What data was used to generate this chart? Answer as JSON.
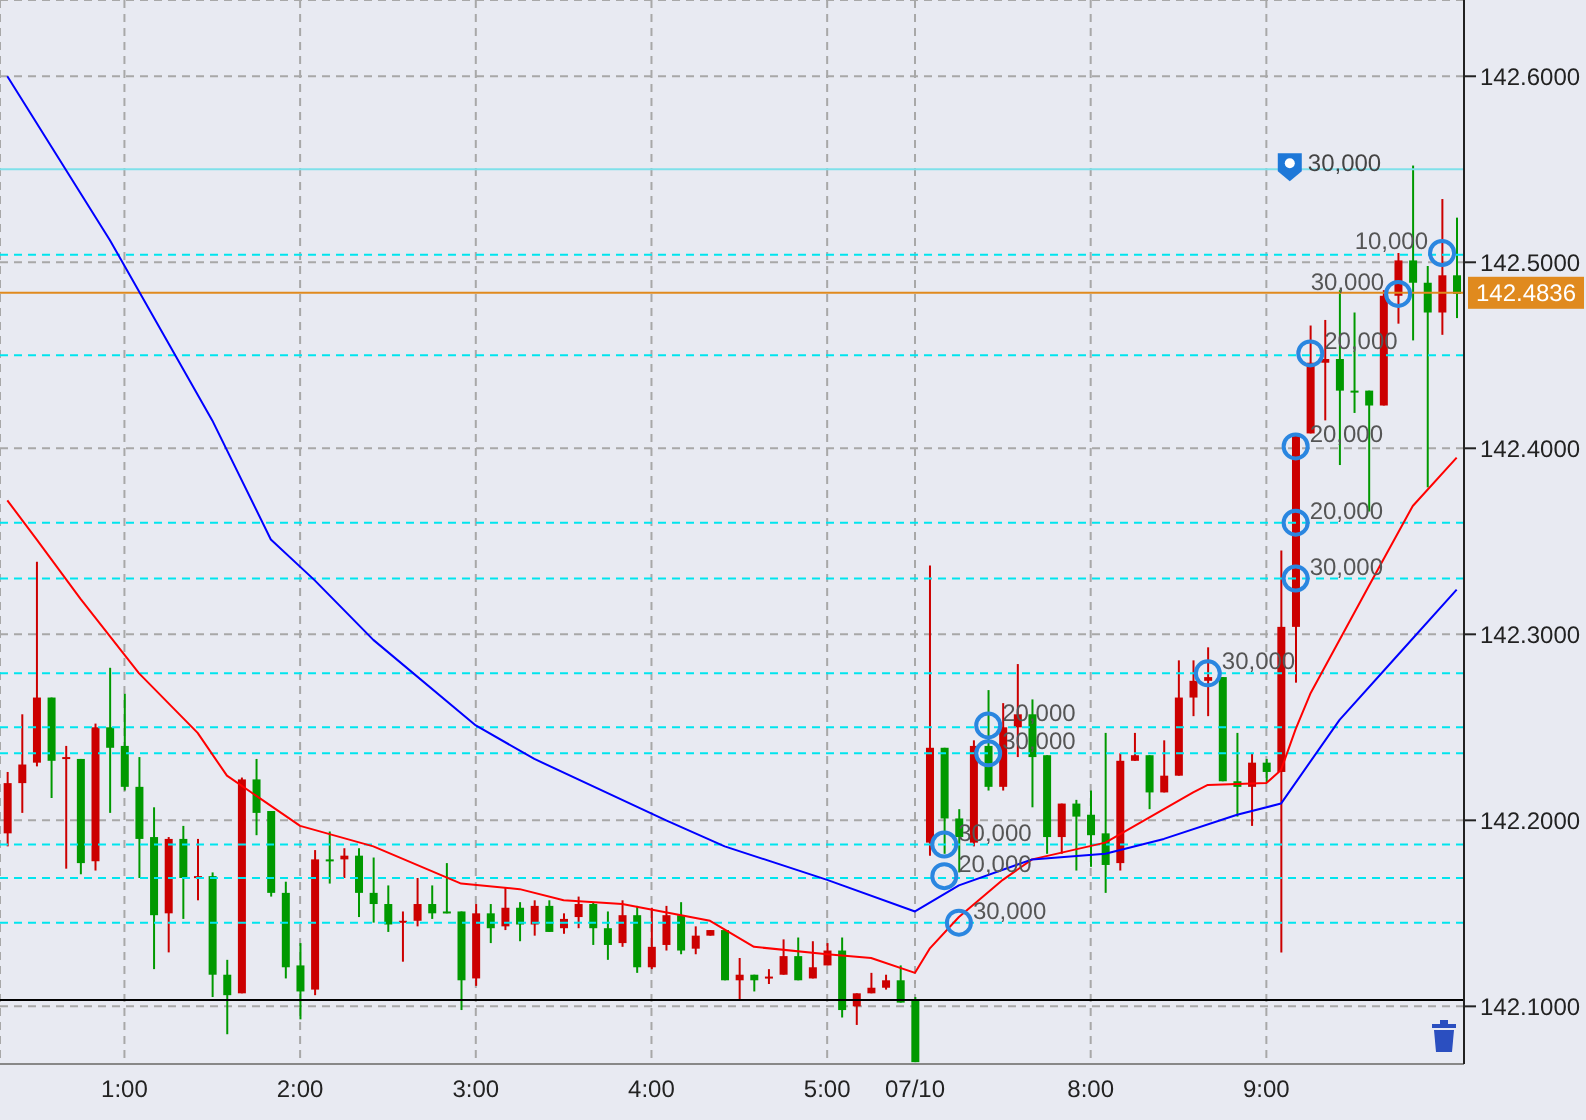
{
  "chart_data": {
    "type": "candlestick",
    "categories": [
      null,
      null,
      null,
      null,
      null,
      null,
      null,
      null,
      "1:00",
      null,
      null,
      null,
      null,
      null,
      null,
      null,
      null,
      null,
      null,
      null,
      "2:00",
      null,
      null,
      null,
      null,
      null,
      null,
      null,
      null,
      null,
      null,
      null,
      "3:00",
      null,
      null,
      null,
      null,
      null,
      null,
      null,
      null,
      null,
      null,
      null,
      "4:00",
      null,
      null,
      null,
      null,
      null,
      null,
      null,
      null,
      null,
      null,
      null,
      "5:00",
      null,
      null,
      null,
      null,
      null,
      "07/10",
      null,
      null,
      null,
      null,
      null,
      null,
      null,
      null,
      null,
      null,
      null,
      "8:00",
      null,
      null,
      null,
      null,
      null,
      null,
      null,
      null,
      null,
      null,
      null,
      "9:00",
      null,
      null,
      null,
      null,
      null,
      null,
      null,
      null,
      null,
      null,
      null,
      null,
      null
    ],
    "ohlc": [
      [
        142.193,
        142.226,
        142.186,
        142.22
      ],
      [
        142.22,
        142.257,
        142.204,
        142.23
      ],
      [
        142.231,
        142.339,
        142.229,
        142.266
      ],
      [
        142.266,
        142.266,
        142.212,
        142.232
      ],
      [
        142.234,
        142.24,
        142.174,
        142.234
      ],
      [
        142.233,
        142.233,
        142.171,
        142.177
      ],
      [
        142.178,
        142.252,
        142.173,
        142.25
      ],
      [
        142.25,
        142.282,
        142.204,
        142.239
      ],
      [
        142.24,
        142.268,
        142.216,
        142.218
      ],
      [
        142.218,
        142.234,
        142.169,
        142.19
      ],
      [
        142.191,
        142.207,
        142.12,
        142.149
      ],
      [
        142.15,
        142.191,
        142.129,
        142.19
      ],
      [
        142.19,
        142.197,
        142.147,
        142.169
      ],
      [
        142.169,
        142.19,
        142.157,
        142.17
      ],
      [
        142.17,
        142.172,
        142.105,
        142.117
      ],
      [
        142.117,
        142.125,
        142.085,
        142.106
      ],
      [
        142.107,
        142.223,
        142.107,
        142.222
      ],
      [
        142.222,
        142.233,
        142.192,
        142.204
      ],
      [
        142.205,
        142.205,
        142.159,
        142.161
      ],
      [
        142.161,
        142.167,
        142.115,
        142.121
      ],
      [
        142.122,
        142.134,
        142.093,
        142.108
      ],
      [
        142.109,
        142.184,
        142.106,
        142.179
      ],
      [
        142.179,
        142.194,
        142.166,
        142.178
      ],
      [
        142.179,
        142.185,
        142.169,
        142.181
      ],
      [
        142.181,
        142.185,
        142.148,
        142.161
      ],
      [
        142.161,
        142.18,
        142.145,
        142.155
      ],
      [
        142.155,
        142.165,
        142.14,
        142.144
      ],
      [
        142.145,
        142.151,
        142.124,
        142.146
      ],
      [
        142.146,
        142.169,
        142.143,
        142.155
      ],
      [
        142.155,
        142.165,
        142.147,
        142.15
      ],
      [
        142.151,
        142.177,
        142.15,
        142.15
      ],
      [
        142.151,
        142.151,
        142.098,
        142.114
      ],
      [
        142.115,
        142.155,
        142.111,
        142.15
      ],
      [
        142.15,
        142.155,
        142.134,
        142.142
      ],
      [
        142.143,
        142.164,
        142.141,
        142.153
      ],
      [
        142.153,
        142.156,
        142.135,
        142.144
      ],
      [
        142.144,
        142.157,
        142.138,
        142.154
      ],
      [
        142.154,
        142.157,
        142.14,
        142.14
      ],
      [
        142.142,
        142.15,
        142.139,
        142.147
      ],
      [
        142.148,
        142.159,
        142.142,
        142.155
      ],
      [
        142.155,
        142.156,
        142.133,
        142.142
      ],
      [
        142.142,
        142.151,
        142.125,
        142.133
      ],
      [
        142.134,
        142.157,
        142.132,
        142.149
      ],
      [
        142.149,
        142.154,
        142.118,
        142.121
      ],
      [
        142.121,
        142.153,
        142.12,
        142.132
      ],
      [
        142.133,
        142.154,
        142.13,
        142.149
      ],
      [
        142.149,
        142.156,
        142.128,
        142.13
      ],
      [
        142.131,
        142.143,
        142.128,
        142.138
      ],
      [
        142.138,
        142.141,
        142.138,
        142.141
      ],
      [
        142.141,
        142.141,
        142.114,
        142.114
      ],
      [
        142.114,
        142.126,
        142.103,
        142.117
      ],
      [
        142.117,
        142.117,
        142.108,
        142.114
      ],
      [
        142.115,
        142.12,
        142.112,
        142.116
      ],
      [
        142.117,
        142.136,
        142.117,
        142.127
      ],
      [
        142.127,
        142.137,
        142.114,
        142.114
      ],
      [
        142.115,
        142.135,
        142.115,
        142.121
      ],
      [
        142.122,
        142.134,
        142.122,
        142.13
      ],
      [
        142.13,
        142.137,
        142.094,
        142.098
      ],
      [
        142.1,
        142.107,
        142.09,
        142.107
      ],
      [
        142.107,
        142.118,
        142.107,
        142.11
      ],
      [
        142.11,
        142.117,
        142.109,
        142.114
      ],
      [
        142.114,
        142.122,
        142.102,
        142.102
      ],
      [
        142.103,
        142.105,
        142.07,
        142.07
      ],
      [
        142.188,
        142.337,
        142.181,
        142.239
      ],
      [
        142.239,
        142.239,
        142.182,
        142.201
      ],
      [
        142.201,
        142.206,
        142.172,
        142.191
      ],
      [
        142.188,
        142.243,
        142.186,
        142.24
      ],
      [
        142.24,
        142.27,
        142.216,
        142.218
      ],
      [
        142.218,
        142.263,
        142.216,
        142.25
      ],
      [
        142.25,
        142.284,
        142.234,
        142.257
      ],
      [
        142.257,
        142.265,
        142.207,
        142.234
      ],
      [
        142.235,
        142.235,
        142.182,
        142.191
      ],
      [
        142.191,
        142.209,
        142.182,
        142.209
      ],
      [
        142.209,
        142.211,
        142.173,
        142.202
      ],
      [
        142.203,
        142.216,
        142.175,
        142.192
      ],
      [
        142.193,
        142.247,
        142.161,
        142.176
      ],
      [
        142.177,
        142.236,
        142.173,
        142.232
      ],
      [
        142.232,
        142.247,
        142.232,
        142.235
      ],
      [
        142.235,
        142.235,
        142.206,
        142.215
      ],
      [
        142.215,
        142.243,
        142.215,
        142.224
      ],
      [
        142.224,
        142.286,
        142.224,
        142.266
      ],
      [
        142.266,
        142.286,
        142.256,
        142.275
      ],
      [
        142.275,
        142.293,
        142.256,
        142.277
      ],
      [
        142.277,
        142.277,
        142.221,
        142.221
      ],
      [
        142.221,
        142.247,
        142.202,
        142.218
      ],
      [
        142.218,
        142.236,
        142.197,
        142.231
      ],
      [
        142.231,
        142.233,
        142.22,
        142.226
      ],
      [
        142.226,
        142.345,
        142.129,
        142.304
      ],
      [
        142.304,
        142.408,
        142.274,
        142.408
      ],
      [
        142.408,
        142.466,
        142.408,
        142.446
      ],
      [
        142.446,
        142.469,
        142.415,
        142.448
      ],
      [
        142.448,
        142.485,
        142.391,
        142.431
      ],
      [
        142.431,
        142.473,
        142.419,
        142.43
      ],
      [
        142.431,
        142.431,
        142.366,
        142.423
      ],
      [
        142.423,
        142.485,
        142.423,
        142.482
      ],
      [
        142.482,
        142.505,
        142.467,
        142.501
      ],
      [
        142.501,
        142.552,
        142.458,
        142.489
      ],
      [
        142.489,
        142.498,
        142.379,
        142.473
      ],
      [
        142.473,
        142.534,
        142.461,
        142.493
      ],
      [
        142.493,
        142.524,
        142.47,
        142.483
      ]
    ],
    "colors": [
      "#cc0000",
      "#cc0000",
      "#cc0000",
      "#009900",
      "#cc0000",
      "#009900",
      "#cc0000",
      "#009900",
      "#009900",
      "#009900",
      "#009900",
      "#cc0000",
      "#009900",
      "#cc0000",
      "#009900",
      "#009900",
      "#cc0000",
      "#009900",
      "#009900",
      "#009900",
      "#009900",
      "#cc0000",
      "#009900",
      "#cc0000",
      "#009900",
      "#009900",
      "#009900",
      "#cc0000",
      "#cc0000",
      "#009900",
      "#009900",
      "#009900",
      "#cc0000",
      "#009900",
      "#cc0000",
      "#009900",
      "#cc0000",
      "#009900",
      "#cc0000",
      "#cc0000",
      "#009900",
      "#009900",
      "#cc0000",
      "#009900",
      "#cc0000",
      "#cc0000",
      "#009900",
      "#cc0000",
      "#cc0000",
      "#009900",
      "#cc0000",
      "#009900",
      "#cc0000",
      "#cc0000",
      "#009900",
      "#cc0000",
      "#cc0000",
      "#009900",
      "#cc0000",
      "#cc0000",
      "#cc0000",
      "#009900",
      "#009900",
      "#cc0000",
      "#009900",
      "#009900",
      "#cc0000",
      "#009900",
      "#cc0000",
      "#cc0000",
      "#009900",
      "#009900",
      "#cc0000",
      "#009900",
      "#009900",
      "#009900",
      "#cc0000",
      "#cc0000",
      "#009900",
      "#cc0000",
      "#cc0000",
      "#cc0000",
      "#cc0000",
      "#009900",
      "#009900",
      "#cc0000",
      "#009900",
      "#cc0000",
      "#cc0000",
      "#cc0000",
      "#cc0000",
      "#009900",
      "#009900",
      "#009900",
      "#cc0000",
      "#cc0000",
      "#009900",
      "#009900",
      "#cc0000",
      "#009900"
    ],
    "series": [
      {
        "type": "line",
        "color": "#ff0000",
        "values": [
          142.372,
          null,
          142.351,
          null,
          null,
          142.319,
          null,
          null,
          null,
          142.279,
          null,
          null,
          null,
          142.247,
          null,
          142.224,
          null,
          null,
          null,
          null,
          142.197,
          null,
          null,
          null,
          null,
          142.186,
          null,
          null,
          null,
          null,
          null,
          142.166,
          null,
          null,
          null,
          142.163,
          null,
          null,
          142.157,
          null,
          null,
          null,
          142.155,
          null,
          null,
          null,
          null,
          null,
          142.146,
          null,
          null,
          142.132,
          null,
          null,
          null,
          null,
          142.128,
          null,
          null,
          142.126,
          null,
          null,
          142.118,
          142.131,
          null,
          142.148,
          null,
          null,
          142.168,
          null,
          142.179,
          null,
          null,
          null,
          null,
          142.188,
          null,
          null,
          null,
          142.206,
          null,
          142.215,
          142.219,
          null,
          null,
          null,
          142.22,
          142.227,
          142.249,
          142.268,
          null,
          null,
          null,
          142.326,
          null,
          null,
          142.369,
          null,
          null,
          142.395
        ]
      },
      {
        "type": "line",
        "color": "#0000ff",
        "values": [
          142.6,
          null,
          null,
          null,
          null,
          null,
          null,
          142.512,
          null,
          null,
          null,
          null,
          null,
          null,
          142.415,
          null,
          null,
          null,
          142.351,
          null,
          null,
          142.329,
          null,
          null,
          null,
          142.297,
          null,
          null,
          null,
          null,
          null,
          null,
          142.251,
          null,
          null,
          null,
          142.233,
          null,
          null,
          null,
          null,
          null,
          null,
          null,
          null,
          142.2,
          null,
          null,
          null,
          142.186,
          null,
          null,
          null,
          null,
          null,
          null,
          142.168,
          null,
          null,
          null,
          null,
          null,
          142.151,
          null,
          null,
          142.165,
          null,
          null,
          null,
          null,
          142.179,
          null,
          null,
          null,
          null,
          142.182,
          null,
          null,
          null,
          142.19,
          null,
          null,
          null,
          null,
          142.203,
          null,
          null,
          142.209,
          null,
          null,
          null,
          142.254,
          null,
          null,
          null,
          142.289,
          null,
          null,
          null,
          142.324
        ]
      },
      {
        "type": "scatter",
        "color": "#2a86e0",
        "marker": "circle",
        "values": [
          null,
          null,
          null,
          null,
          null,
          null,
          null,
          null,
          null,
          null,
          null,
          null,
          null,
          null,
          null,
          null,
          null,
          null,
          null,
          null,
          null,
          null,
          null,
          null,
          null,
          null,
          null,
          null,
          null,
          null,
          null,
          null,
          null,
          null,
          null,
          null,
          null,
          null,
          null,
          null,
          null,
          null,
          null,
          null,
          null,
          null,
          null,
          null,
          null,
          null,
          null,
          null,
          null,
          null,
          null,
          null,
          null,
          null,
          null,
          null,
          null,
          null,
          null,
          null,
          142.187,
          142.145,
          null,
          142.251,
          null,
          null,
          null,
          null,
          null,
          null,
          null,
          null,
          null,
          null,
          null,
          null,
          null,
          null,
          142.279,
          null,
          null,
          null,
          null,
          null,
          142.33,
          142.451,
          null,
          null,
          null,
          null,
          null,
          142.483,
          null,
          null,
          142.505,
          null
        ]
      },
      {
        "type": "scatter",
        "color": "#2a86e0",
        "marker": "circle",
        "values": [
          null,
          null,
          null,
          null,
          null,
          null,
          null,
          null,
          null,
          null,
          null,
          null,
          null,
          null,
          null,
          null,
          null,
          null,
          null,
          null,
          null,
          null,
          null,
          null,
          null,
          null,
          null,
          null,
          null,
          null,
          null,
          null,
          null,
          null,
          null,
          null,
          null,
          null,
          null,
          null,
          null,
          null,
          null,
          null,
          null,
          null,
          null,
          null,
          null,
          null,
          null,
          null,
          null,
          null,
          null,
          null,
          null,
          null,
          null,
          null,
          null,
          null,
          null,
          null,
          142.17,
          null,
          null,
          142.236,
          null,
          null,
          null,
          null,
          null,
          null,
          null,
          null,
          null,
          null,
          null,
          null,
          null,
          null,
          null,
          null,
          null,
          null,
          null,
          null,
          142.36,
          null,
          null,
          null,
          null,
          null,
          null,
          null,
          null,
          null,
          null,
          null
        ]
      },
      {
        "type": "scatter",
        "color": "#2a86e0",
        "marker": "circle",
        "values": [
          null,
          null,
          null,
          null,
          null,
          null,
          null,
          null,
          null,
          null,
          null,
          null,
          null,
          null,
          null,
          null,
          null,
          null,
          null,
          null,
          null,
          null,
          null,
          null,
          null,
          null,
          null,
          null,
          null,
          null,
          null,
          null,
          null,
          null,
          null,
          null,
          null,
          null,
          null,
          null,
          null,
          null,
          null,
          null,
          null,
          null,
          null,
          null,
          null,
          null,
          null,
          null,
          null,
          null,
          null,
          null,
          null,
          null,
          null,
          null,
          null,
          null,
          null,
          null,
          null,
          null,
          null,
          null,
          null,
          null,
          null,
          null,
          null,
          null,
          null,
          null,
          null,
          null,
          null,
          null,
          null,
          null,
          null,
          null,
          null,
          null,
          null,
          null,
          142.401,
          null,
          null,
          null,
          null,
          null,
          null,
          null,
          null,
          null,
          null,
          null
        ]
      }
    ],
    "ylim": [
      142.069,
      142.641
    ],
    "yticks": [
      {
        "value": 142.1,
        "label": "142.1000"
      },
      {
        "value": 142.2,
        "label": "142.2000"
      },
      {
        "value": 142.3,
        "label": "142.3000"
      },
      {
        "value": 142.4,
        "label": "142.4000"
      },
      {
        "value": 142.5,
        "label": "142.5000"
      },
      {
        "value": 142.6,
        "label": "142.6000"
      }
    ],
    "ref_lines": [
      {
        "axis": "y",
        "value": 142.4836,
        "label": "142.4836",
        "color": "#e08a1e",
        "line_style": "solid"
      },
      {
        "axis": "y",
        "value": 142.55,
        "color": "#7fe0ea",
        "line_style": "solid"
      },
      {
        "axis": "y",
        "value": 142.1034,
        "color": "#000000",
        "line_style": "solid"
      },
      {
        "axis": "y",
        "value": 142.504,
        "color": "#00e5ee",
        "line_style": "dashed"
      },
      {
        "axis": "y",
        "value": 142.45,
        "color": "#00e5ee",
        "line_style": "dashed"
      },
      {
        "axis": "y",
        "value": 142.36,
        "color": "#00e5ee",
        "line_style": "dashed"
      },
      {
        "axis": "y",
        "value": 142.33,
        "color": "#00e5ee",
        "line_style": "dashed"
      },
      {
        "axis": "y",
        "value": 142.279,
        "color": "#00e5ee",
        "line_style": "dashed"
      },
      {
        "axis": "y",
        "value": 142.25,
        "color": "#00e5ee",
        "line_style": "dashed"
      },
      {
        "axis": "y",
        "value": 142.236,
        "color": "#00e5ee",
        "line_style": "dashed"
      },
      {
        "axis": "y",
        "value": 142.187,
        "color": "#00e5ee",
        "line_style": "dashed"
      },
      {
        "axis": "y",
        "value": 142.169,
        "color": "#00e5ee",
        "line_style": "dashed"
      },
      {
        "axis": "y",
        "value": 142.145,
        "color": "#00e5ee",
        "line_style": "dashed"
      }
    ],
    "annotations": [
      {
        "text": "30,000",
        "y": 142.187
      },
      {
        "text": "30,000",
        "y": 142.145
      },
      {
        "text": "20,000",
        "y": 142.251
      },
      {
        "text": "30,000",
        "y": 142.279
      },
      {
        "text": "30,000",
        "y": 142.33
      },
      {
        "text": "20,000",
        "y": 142.451
      },
      {
        "text": "30,000",
        "y": 142.483
      },
      {
        "text": "10,000",
        "y": 142.505
      },
      {
        "text": "20,000",
        "y": 142.17
      },
      {
        "text": "30,000",
        "y": 142.236
      },
      {
        "text": "20,000",
        "y": 142.36
      },
      {
        "text": "20,000",
        "y": 142.401
      },
      {
        "text": "30,000",
        "y": 142.55
      }
    ],
    "grid": true
  }
}
